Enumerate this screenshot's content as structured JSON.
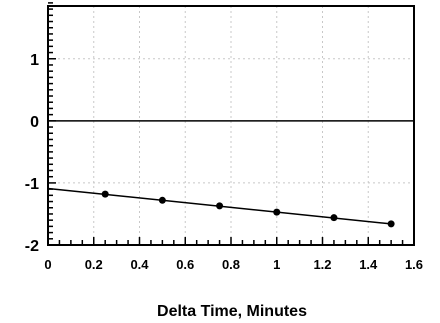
{
  "chart_data": {
    "type": "line",
    "title": "",
    "xlabel": "Delta Time, Minutes",
    "ylabel": "",
    "xlim": [
      0,
      1.6
    ],
    "ylim": [
      -2,
      1.85
    ],
    "x_ticks": [
      0,
      0.2,
      0.4,
      0.6,
      0.8,
      1,
      1.2,
      1.4,
      1.6
    ],
    "x_tick_labels": [
      "0",
      "0.2",
      "0.4",
      "0.6",
      "0.8",
      "1",
      "1.2",
      "1.4",
      "1.6"
    ],
    "y_ticks": [
      -2,
      -1,
      0,
      1
    ],
    "y_tick_labels": [
      "-2",
      "-1",
      "0",
      "1"
    ],
    "grid": true,
    "reference_line_y": 0,
    "series": [
      {
        "x": [
          0.25,
          0.5,
          0.75,
          1.0,
          1.25,
          1.5
        ],
        "y": [
          -1.18,
          -1.28,
          -1.37,
          -1.47,
          -1.56,
          -1.66
        ]
      }
    ],
    "fit_line": {
      "x": [
        0,
        1.5
      ],
      "y": [
        -1.09,
        -1.66
      ]
    },
    "colors": {
      "line": "#000000",
      "grid": "#c8c8c8",
      "zero_line": "#000000"
    }
  }
}
